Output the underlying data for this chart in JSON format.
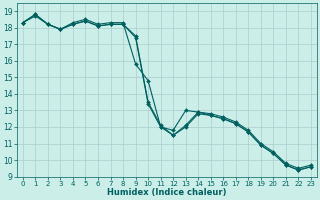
{
  "title": "",
  "xlabel": "Humidex (Indice chaleur)",
  "ylabel": "",
  "bg_color": "#cceee8",
  "grid_color": "#aacccc",
  "line_color": "#006060",
  "xlim": [
    -0.5,
    23.5
  ],
  "ylim": [
    9,
    19.5
  ],
  "yticks": [
    9,
    10,
    11,
    12,
    13,
    14,
    15,
    16,
    17,
    18,
    19
  ],
  "xticks": [
    0,
    1,
    2,
    3,
    4,
    5,
    6,
    7,
    8,
    9,
    10,
    11,
    12,
    13,
    14,
    15,
    16,
    17,
    18,
    19,
    20,
    21,
    22,
    23
  ],
  "series1_x": [
    0,
    1,
    2,
    3,
    4,
    5,
    6,
    7,
    8,
    9,
    10,
    11,
    12,
    13,
    14,
    15,
    16,
    17,
    18,
    19,
    20,
    21,
    22,
    23
  ],
  "series1_y": [
    18.3,
    18.8,
    18.2,
    17.9,
    18.2,
    18.4,
    18.1,
    18.2,
    18.2,
    17.5,
    13.5,
    12.1,
    11.5,
    12.1,
    12.9,
    12.8,
    12.6,
    12.3,
    11.8,
    11.0,
    10.5,
    9.8,
    9.5,
    9.7
  ],
  "series2_x": [
    0,
    1,
    2,
    3,
    4,
    5,
    6,
    7,
    8,
    9,
    10,
    11,
    12,
    13,
    14,
    15,
    16,
    17,
    18,
    19,
    20,
    21,
    22,
    23
  ],
  "series2_y": [
    18.3,
    18.8,
    18.2,
    17.9,
    18.3,
    18.5,
    18.2,
    18.3,
    18.3,
    15.8,
    14.8,
    12.0,
    11.8,
    13.0,
    12.9,
    12.7,
    12.5,
    12.2,
    11.7,
    10.9,
    10.4,
    9.7,
    9.4,
    9.6
  ],
  "series3_x": [
    0,
    1,
    2,
    3,
    4,
    5,
    6,
    7,
    8,
    9,
    10,
    11,
    12,
    13,
    14,
    15,
    16,
    17,
    18,
    19,
    20,
    21,
    22,
    23
  ],
  "series3_y": [
    18.3,
    18.7,
    18.2,
    17.9,
    18.2,
    18.4,
    18.1,
    18.2,
    18.2,
    17.4,
    13.4,
    12.0,
    11.5,
    12.0,
    12.8,
    12.7,
    12.5,
    12.2,
    11.7,
    10.9,
    10.4,
    9.7,
    9.4,
    9.6
  ],
  "xlabel_fontsize": 6,
  "tick_fontsize": 5,
  "marker_size": 2,
  "linewidth": 0.8
}
